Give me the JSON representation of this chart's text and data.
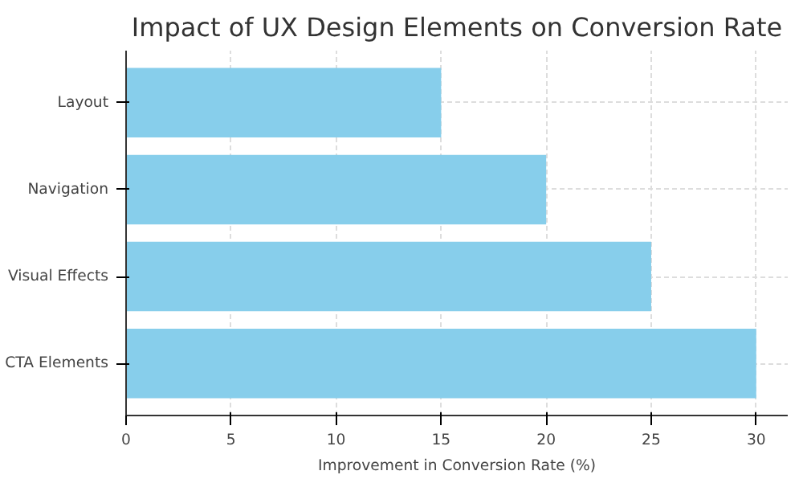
{
  "chart_data": {
    "type": "bar",
    "orientation": "horizontal",
    "title": "Impact of UX Design Elements on Conversion Rate",
    "xlabel": "Improvement in Conversion Rate (%)",
    "categories": [
      "Layout",
      "Navigation",
      "Visual Effects",
      "CTA Elements"
    ],
    "values": [
      15,
      20,
      25,
      30
    ],
    "color": "#87ceeb",
    "xlim": [
      0,
      31.5
    ],
    "xticks": [
      0,
      5,
      10,
      15,
      20,
      25,
      30
    ],
    "grid": true
  }
}
